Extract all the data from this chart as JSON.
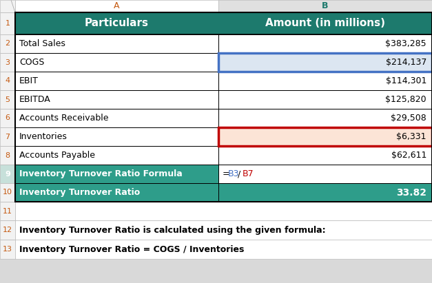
{
  "fig_w": 6.27,
  "fig_h": 4.11,
  "dpi": 100,
  "col_header_bg": "#1d7a6d",
  "col_header_text": "#ffffff",
  "col_header_labels": [
    "Particulars",
    "Amount (in millions)"
  ],
  "teal_row_bg": "#2e9d8a",
  "teal_row_text": "#ffffff",
  "blue_highlight_bg": "#dce6f1",
  "blue_highlight_border": "#4472c4",
  "red_highlight_bg": "#fce4d6",
  "red_highlight_border": "#c00000",
  "white_bg": "#ffffff",
  "gray_bg": "#d9d9d9",
  "col_A_letter_bg": "#ffffff",
  "col_B_letter_bg": "#e0e0e0",
  "col_A_letter_color": "#c55a11",
  "col_B_letter_color": "#1d7a6d",
  "row_num_bg": "#f2f2f2",
  "row_num_color": "#c55a11",
  "row9_num_bg": "#c7e0da",
  "rows": [
    {
      "label": "Total Sales",
      "value": "$383,285",
      "bg_A": "#ffffff",
      "bg_B": "#ffffff",
      "bold_A": false,
      "bold_B": false
    },
    {
      "label": "COGS",
      "value": "$214,137",
      "bg_A": "#ffffff",
      "bg_B": "#dce6f1",
      "bold_A": false,
      "bold_B": false,
      "highlight_B": "blue"
    },
    {
      "label": "EBIT",
      "value": "$114,301",
      "bg_A": "#ffffff",
      "bg_B": "#ffffff",
      "bold_A": false,
      "bold_B": false
    },
    {
      "label": "EBITDA",
      "value": "$125,820",
      "bg_A": "#ffffff",
      "bg_B": "#ffffff",
      "bold_A": false,
      "bold_B": false
    },
    {
      "label": "Accounts Receivable",
      "value": "$29,508",
      "bg_A": "#ffffff",
      "bg_B": "#ffffff",
      "bold_A": false,
      "bold_B": false
    },
    {
      "label": "Inventories",
      "value": "$6,331",
      "bg_A": "#ffffff",
      "bg_B": "#fce4d6",
      "bold_A": false,
      "bold_B": false,
      "highlight_B": "red"
    },
    {
      "label": "Accounts Payable",
      "value": "$62,611",
      "bg_A": "#ffffff",
      "bg_B": "#ffffff",
      "bold_A": false,
      "bold_B": false
    },
    {
      "label": "Inventory Turnover Ratio Formula",
      "value": "=B3/B7",
      "bg_A": "#2e9d8a",
      "bg_B": "#ffffff",
      "bold_A": true,
      "bold_B": false,
      "formula": true
    },
    {
      "label": "Inventory Turnover Ratio",
      "value": "33.82",
      "bg_A": "#2e9d8a",
      "bg_B": "#2e9d8a",
      "bold_A": true,
      "bold_B": true
    }
  ],
  "footer_rows": [
    {
      "num": "12",
      "text": "Inventory Turnover Ratio is calculated using the given formula:"
    },
    {
      "num": "13",
      "text": "Inventory Turnover Ratio = COGS / Inventories"
    }
  ],
  "col_letter_A": "A",
  "col_letter_B": "B",
  "formula_B3_color": "#4472c4",
  "formula_B7_color": "#c00000",
  "outer_border_color": "#000000",
  "cell_border_color": "#000000",
  "faint_border_color": "#bfbfbf"
}
